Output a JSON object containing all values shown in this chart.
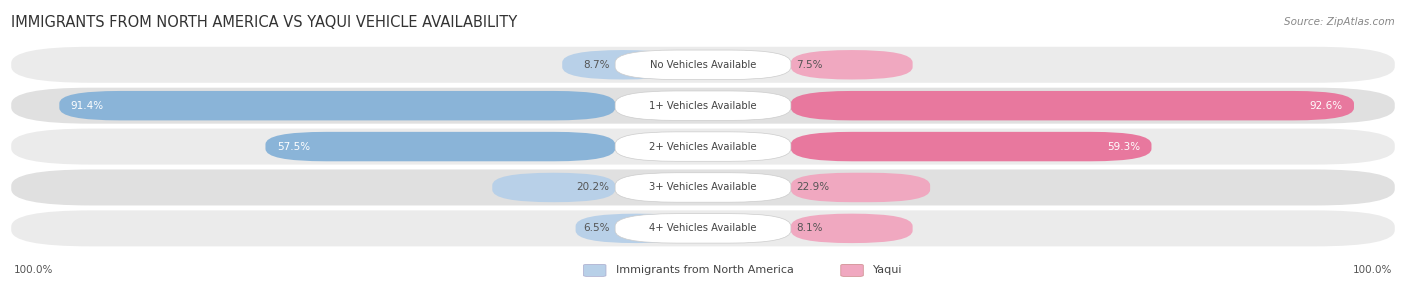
{
  "title": "IMMIGRANTS FROM NORTH AMERICA VS YAQUI VEHICLE AVAILABILITY",
  "source": "Source: ZipAtlas.com",
  "categories": [
    "No Vehicles Available",
    "1+ Vehicles Available",
    "2+ Vehicles Available",
    "3+ Vehicles Available",
    "4+ Vehicles Available"
  ],
  "north_america_values": [
    8.7,
    91.4,
    57.5,
    20.2,
    6.5
  ],
  "yaqui_values": [
    7.5,
    92.6,
    59.3,
    22.9,
    8.1
  ],
  "north_america_color": "#8ab4d8",
  "yaqui_color": "#e8789e",
  "na_light_color": "#b8d0e8",
  "yq_light_color": "#f0a8c0",
  "row_bg_even": "#ebebeb",
  "row_bg_odd": "#e0e0e0",
  "legend_na": "Immigrants from North America",
  "legend_yaqui": "Yaqui",
  "title_color": "#333333",
  "source_color": "#888888",
  "label_dark": "#555555",
  "label_white": "#ffffff"
}
